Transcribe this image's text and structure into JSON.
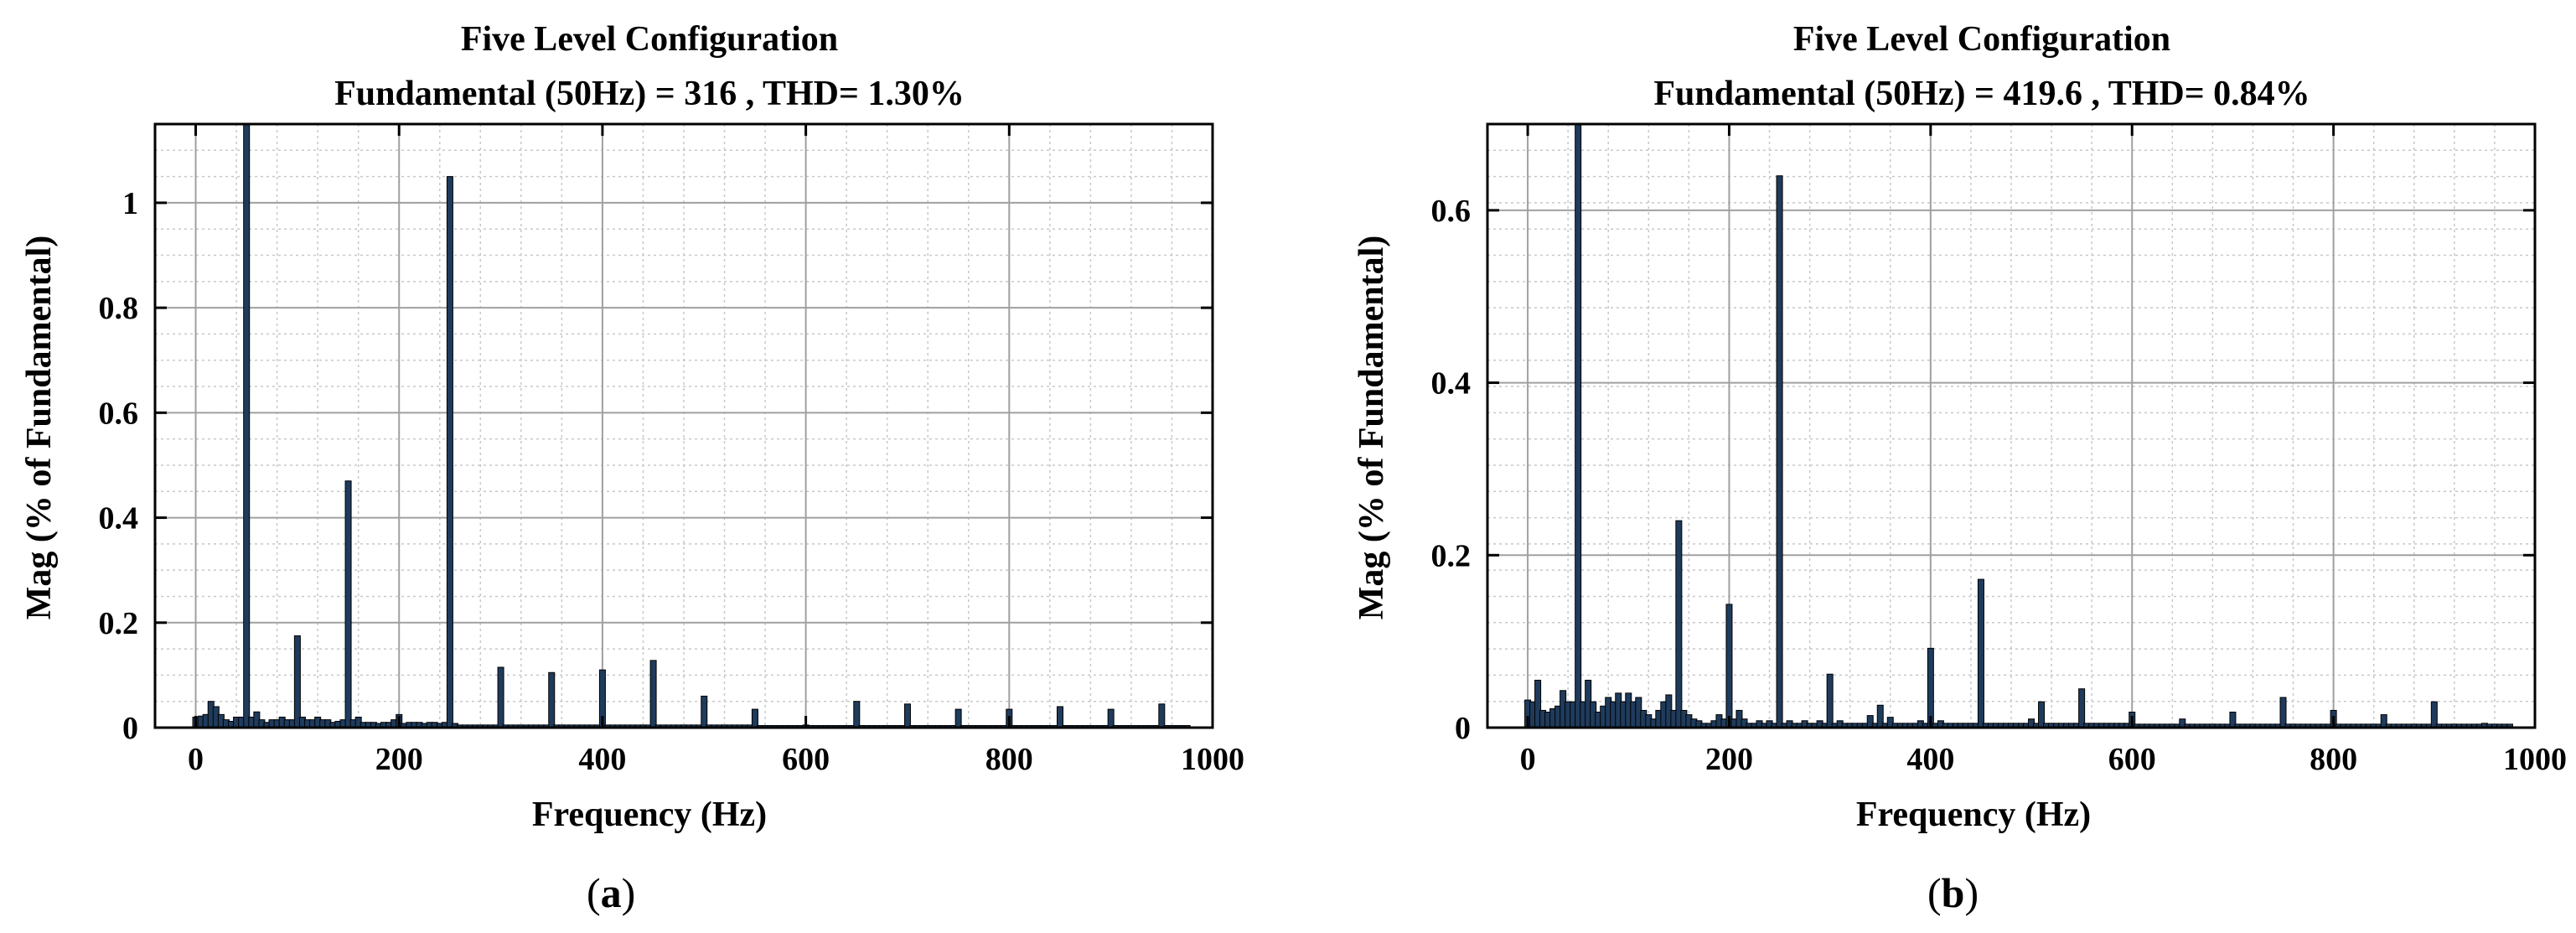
{
  "chart_data": [
    {
      "type": "bar",
      "panel_label": "a",
      "title": "Five Level Configuration",
      "subtitle": "Fundamental (50Hz) = 316 , THD= 1.30%",
      "xlabel": "Frequency (Hz)",
      "ylabel": "Mag (% of Fundamental)",
      "xlim": [
        -40,
        1000
      ],
      "ylim": [
        0,
        1.15
      ],
      "xticks": [
        0,
        200,
        400,
        600,
        800,
        1000
      ],
      "xtick_labels": [
        "0",
        "200",
        "400",
        "600",
        "800",
        "1000"
      ],
      "yticks": [
        0,
        0.2,
        0.4,
        0.6,
        0.8,
        1
      ],
      "ytick_labels": [
        "0",
        "0.2",
        "0.4",
        "0.6",
        "0.8",
        "1"
      ],
      "grid": true,
      "bar_color": "#1f3b5c",
      "x": [
        0,
        5,
        10,
        15,
        20,
        25,
        30,
        35,
        40,
        45,
        50,
        55,
        60,
        65,
        70,
        75,
        80,
        85,
        90,
        95,
        100,
        105,
        110,
        115,
        120,
        125,
        130,
        135,
        140,
        145,
        150,
        155,
        160,
        165,
        170,
        175,
        180,
        185,
        190,
        195,
        200,
        205,
        210,
        215,
        220,
        225,
        230,
        235,
        240,
        245,
        250,
        255,
        260,
        265,
        270,
        275,
        280,
        285,
        290,
        295,
        300,
        305,
        310,
        315,
        320,
        325,
        330,
        335,
        340,
        345,
        350,
        355,
        360,
        365,
        370,
        375,
        380,
        385,
        390,
        395,
        400,
        405,
        410,
        415,
        420,
        425,
        430,
        435,
        440,
        445,
        450,
        455,
        460,
        465,
        470,
        475,
        480,
        485,
        490,
        495,
        500,
        505,
        510,
        515,
        520,
        525,
        530,
        535,
        540,
        545,
        550,
        555,
        560,
        565,
        570,
        575,
        580,
        585,
        590,
        595,
        600,
        605,
        610,
        615,
        620,
        625,
        630,
        635,
        640,
        645,
        650,
        655,
        660,
        665,
        670,
        675,
        680,
        685,
        690,
        695,
        700,
        705,
        710,
        715,
        720,
        725,
        730,
        735,
        740,
        745,
        750,
        755,
        760,
        765,
        770,
        775,
        780,
        785,
        790,
        795,
        800,
        805,
        810,
        815,
        820,
        825,
        830,
        835,
        840,
        845,
        850,
        855,
        860,
        865,
        870,
        875,
        880,
        885,
        890,
        895,
        900,
        905,
        910,
        915,
        920,
        925,
        930,
        935,
        940,
        945,
        950,
        955,
        960,
        965,
        970,
        975
      ],
      "values": [
        0.02,
        0.022,
        0.025,
        0.05,
        0.04,
        0.025,
        0.015,
        0.012,
        0.02,
        0.02,
        1.15,
        0.02,
        0.03,
        0.015,
        0.01,
        0.015,
        0.015,
        0.02,
        0.015,
        0.015,
        0.175,
        0.02,
        0.015,
        0.015,
        0.02,
        0.015,
        0.015,
        0.01,
        0.012,
        0.015,
        0.47,
        0.015,
        0.02,
        0.01,
        0.01,
        0.01,
        0.008,
        0.01,
        0.01,
        0.015,
        0.025,
        0.008,
        0.01,
        0.01,
        0.01,
        0.008,
        0.01,
        0.01,
        0.008,
        0.01,
        1.05,
        0.008,
        0.005,
        0.005,
        0.005,
        0.005,
        0.005,
        0.005,
        0.005,
        0.005,
        0.115,
        0.005,
        0.005,
        0.005,
        0.005,
        0.005,
        0.005,
        0.005,
        0.005,
        0.005,
        0.105,
        0.005,
        0.005,
        0.005,
        0.005,
        0.005,
        0.005,
        0.005,
        0.005,
        0.005,
        0.11,
        0.005,
        0.005,
        0.005,
        0.005,
        0.005,
        0.005,
        0.005,
        0.005,
        0.005,
        0.128,
        0.005,
        0.005,
        0.005,
        0.005,
        0.005,
        0.005,
        0.005,
        0.005,
        0.005,
        0.06,
        0.005,
        0.005,
        0.005,
        0.005,
        0.005,
        0.005,
        0.005,
        0.005,
        0.005,
        0.035,
        0.004,
        0.004,
        0.004,
        0.004,
        0.004,
        0.004,
        0.004,
        0.004,
        0.004,
        0.005,
        0.004,
        0.004,
        0.004,
        0.004,
        0.004,
        0.004,
        0.004,
        0.004,
        0.004,
        0.05,
        0.004,
        0.004,
        0.004,
        0.004,
        0.004,
        0.004,
        0.004,
        0.004,
        0.004,
        0.045,
        0.004,
        0.004,
        0.004,
        0.004,
        0.004,
        0.004,
        0.004,
        0.004,
        0.004,
        0.035,
        0.004,
        0.004,
        0.004,
        0.004,
        0.004,
        0.004,
        0.004,
        0.004,
        0.004,
        0.035,
        0.004,
        0.004,
        0.004,
        0.004,
        0.004,
        0.004,
        0.004,
        0.004,
        0.004,
        0.04,
        0.004,
        0.004,
        0.004,
        0.004,
        0.004,
        0.004,
        0.004,
        0.004,
        0.004,
        0.035,
        0.004,
        0.004,
        0.004,
        0.004,
        0.004,
        0.004,
        0.004,
        0.004,
        0.004,
        0.045,
        0.004,
        0.004,
        0.004,
        0.004,
        0.004
      ]
    },
    {
      "type": "bar",
      "panel_label": "b",
      "title": "Five Level Configuration",
      "subtitle": "Fundamental (50Hz) = 419.6 , THD= 0.84%",
      "xlabel": "Frequency (Hz)",
      "ylabel": "Mag (% of Fundamental)",
      "xlim": [
        -40,
        1000
      ],
      "ylim": [
        0,
        0.7
      ],
      "xticks": [
        0,
        200,
        400,
        600,
        800,
        1000
      ],
      "xtick_labels": [
        "0",
        "200",
        "400",
        "600",
        "800",
        "1000"
      ],
      "yticks": [
        0,
        0.2,
        0.4,
        0.6
      ],
      "ytick_labels": [
        "0",
        "0.2",
        "0.4",
        "0.6"
      ],
      "grid": true,
      "bar_color": "#1f3b5c",
      "x": [
        0,
        5,
        10,
        15,
        20,
        25,
        30,
        35,
        40,
        45,
        50,
        55,
        60,
        65,
        70,
        75,
        80,
        85,
        90,
        95,
        100,
        105,
        110,
        115,
        120,
        125,
        130,
        135,
        140,
        145,
        150,
        155,
        160,
        165,
        170,
        175,
        180,
        185,
        190,
        195,
        200,
        205,
        210,
        215,
        220,
        225,
        230,
        235,
        240,
        245,
        250,
        255,
        260,
        265,
        270,
        275,
        280,
        285,
        290,
        295,
        300,
        305,
        310,
        315,
        320,
        325,
        330,
        335,
        340,
        345,
        350,
        355,
        360,
        365,
        370,
        375,
        380,
        385,
        390,
        395,
        400,
        405,
        410,
        415,
        420,
        425,
        430,
        435,
        440,
        445,
        450,
        455,
        460,
        465,
        470,
        475,
        480,
        485,
        490,
        495,
        500,
        505,
        510,
        515,
        520,
        525,
        530,
        535,
        540,
        545,
        550,
        555,
        560,
        565,
        570,
        575,
        580,
        585,
        590,
        595,
        600,
        605,
        610,
        615,
        620,
        625,
        630,
        635,
        640,
        645,
        650,
        655,
        660,
        665,
        670,
        675,
        680,
        685,
        690,
        695,
        700,
        705,
        710,
        715,
        720,
        725,
        730,
        735,
        740,
        745,
        750,
        755,
        760,
        765,
        770,
        775,
        780,
        785,
        790,
        795,
        800,
        805,
        810,
        815,
        820,
        825,
        830,
        835,
        840,
        845,
        850,
        855,
        860,
        865,
        870,
        875,
        880,
        885,
        890,
        895,
        900,
        905,
        910,
        915,
        920,
        925,
        930,
        935,
        940,
        945,
        950,
        955,
        960,
        965,
        970,
        975
      ],
      "values": [
        0.032,
        0.03,
        0.055,
        0.02,
        0.018,
        0.022,
        0.025,
        0.043,
        0.03,
        0.03,
        0.7,
        0.03,
        0.055,
        0.03,
        0.018,
        0.025,
        0.035,
        0.03,
        0.04,
        0.03,
        0.04,
        0.03,
        0.035,
        0.02,
        0.015,
        0.01,
        0.02,
        0.03,
        0.038,
        0.02,
        0.24,
        0.02,
        0.015,
        0.01,
        0.008,
        0.005,
        0.005,
        0.008,
        0.015,
        0.01,
        0.143,
        0.01,
        0.02,
        0.01,
        0.005,
        0.005,
        0.008,
        0.005,
        0.008,
        0.005,
        0.64,
        0.005,
        0.008,
        0.005,
        0.005,
        0.008,
        0.005,
        0.005,
        0.008,
        0.005,
        0.062,
        0.005,
        0.008,
        0.005,
        0.005,
        0.005,
        0.005,
        0.005,
        0.014,
        0.005,
        0.026,
        0.005,
        0.012,
        0.005,
        0.005,
        0.005,
        0.005,
        0.005,
        0.008,
        0.005,
        0.092,
        0.005,
        0.008,
        0.005,
        0.005,
        0.005,
        0.005,
        0.005,
        0.005,
        0.005,
        0.172,
        0.005,
        0.005,
        0.005,
        0.005,
        0.005,
        0.005,
        0.005,
        0.005,
        0.005,
        0.01,
        0.005,
        0.03,
        0.005,
        0.005,
        0.005,
        0.005,
        0.005,
        0.005,
        0.005,
        0.045,
        0.005,
        0.005,
        0.005,
        0.005,
        0.005,
        0.005,
        0.005,
        0.005,
        0.005,
        0.018,
        0.004,
        0.004,
        0.004,
        0.004,
        0.004,
        0.004,
        0.004,
        0.004,
        0.004,
        0.01,
        0.004,
        0.004,
        0.004,
        0.004,
        0.004,
        0.004,
        0.004,
        0.004,
        0.004,
        0.018,
        0.004,
        0.004,
        0.004,
        0.004,
        0.004,
        0.004,
        0.004,
        0.004,
        0.004,
        0.035,
        0.004,
        0.004,
        0.004,
        0.004,
        0.004,
        0.004,
        0.004,
        0.004,
        0.004,
        0.02,
        0.004,
        0.004,
        0.004,
        0.004,
        0.004,
        0.004,
        0.004,
        0.004,
        0.004,
        0.015,
        0.004,
        0.004,
        0.004,
        0.004,
        0.004,
        0.004,
        0.004,
        0.004,
        0.004,
        0.03,
        0.004,
        0.004,
        0.004,
        0.004,
        0.004,
        0.004,
        0.004,
        0.004,
        0.004,
        0.005,
        0.004,
        0.004,
        0.004,
        0.004,
        0.004
      ]
    }
  ]
}
